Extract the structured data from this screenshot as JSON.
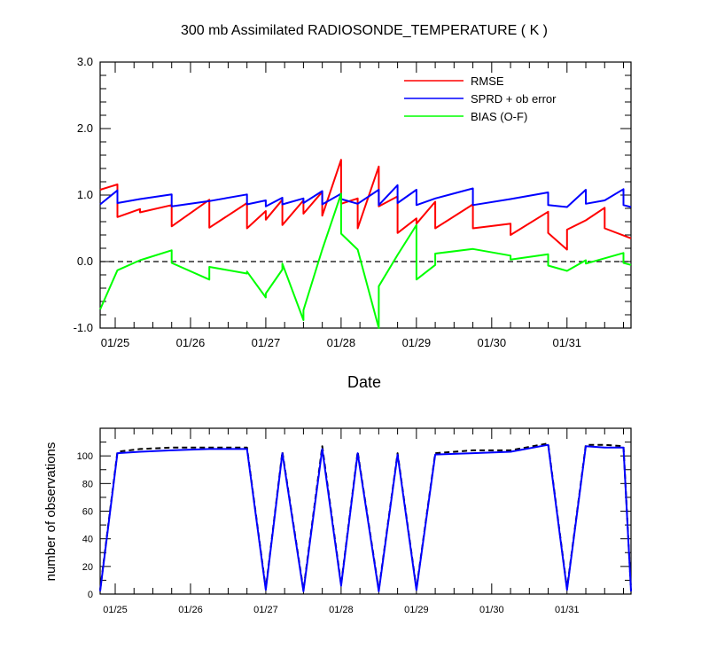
{
  "chart_data": [
    {
      "type": "line",
      "title": "300 mb Assimilated RADIOSONDE_TEMPERATURE ( K )",
      "xlabel": "Date",
      "ylabel": "",
      "xlim": [
        0.8,
        7.85
      ],
      "ylim": [
        -1.0,
        3.0
      ],
      "grid": false,
      "legend_position": "top-right",
      "x_ticks": [
        {
          "x": 1,
          "label": "01/25"
        },
        {
          "x": 2,
          "label": "01/26"
        },
        {
          "x": 3,
          "label": "01/27"
        },
        {
          "x": 4,
          "label": "01/28"
        },
        {
          "x": 5,
          "label": "01/29"
        },
        {
          "x": 6,
          "label": "01/30"
        },
        {
          "x": 7,
          "label": "01/31"
        }
      ],
      "y_ticks": [
        {
          "y": -1.0,
          "label": "-1.0"
        },
        {
          "y": 0.0,
          "label": "0.0"
        },
        {
          "y": 1.0,
          "label": "1.0"
        },
        {
          "y": 2.0,
          "label": "2.0"
        },
        {
          "y": 3.0,
          "label": "3.0"
        }
      ],
      "reference_line": {
        "y": 0.0,
        "style": "dashed"
      },
      "series": [
        {
          "name": "RMSE",
          "color": "#ff0000",
          "points": [
            [
              0.8,
              1.08
            ],
            [
              1.03,
              1.16
            ],
            [
              1.03,
              0.67
            ],
            [
              1.33,
              0.79
            ],
            [
              1.33,
              0.74
            ],
            [
              1.75,
              0.85
            ],
            [
              1.75,
              0.53
            ],
            [
              2.25,
              0.93
            ],
            [
              2.25,
              0.51
            ],
            [
              2.75,
              0.88
            ],
            [
              2.75,
              0.5
            ],
            [
              3.0,
              0.76
            ],
            [
              3.0,
              0.63
            ],
            [
              3.22,
              0.93
            ],
            [
              3.22,
              0.55
            ],
            [
              3.5,
              0.92
            ],
            [
              3.5,
              0.72
            ],
            [
              3.75,
              1.05
            ],
            [
              3.75,
              0.69
            ],
            [
              4.0,
              1.53
            ],
            [
              4.0,
              0.87
            ],
            [
              4.22,
              0.95
            ],
            [
              4.22,
              0.5
            ],
            [
              4.5,
              1.43
            ],
            [
              4.5,
              0.83
            ],
            [
              4.75,
              0.98
            ],
            [
              4.75,
              0.43
            ],
            [
              5.0,
              0.65
            ],
            [
              5.0,
              0.57
            ],
            [
              5.25,
              0.9
            ],
            [
              5.25,
              0.5
            ],
            [
              5.75,
              0.86
            ],
            [
              5.75,
              0.5
            ],
            [
              6.25,
              0.57
            ],
            [
              6.25,
              0.4
            ],
            [
              6.75,
              0.75
            ],
            [
              6.75,
              0.43
            ],
            [
              7.0,
              0.18
            ],
            [
              7.0,
              0.48
            ],
            [
              7.25,
              0.62
            ],
            [
              7.5,
              0.81
            ],
            [
              7.5,
              0.5
            ],
            [
              7.85,
              0.35
            ]
          ]
        },
        {
          "name": "SPRD + ob error",
          "color": "#0000ff",
          "points": [
            [
              0.8,
              0.86
            ],
            [
              1.03,
              1.07
            ],
            [
              1.03,
              0.88
            ],
            [
              1.33,
              0.94
            ],
            [
              1.75,
              1.01
            ],
            [
              1.75,
              0.83
            ],
            [
              2.25,
              0.91
            ],
            [
              2.75,
              1.01
            ],
            [
              2.75,
              0.86
            ],
            [
              3.0,
              0.92
            ],
            [
              3.0,
              0.83
            ],
            [
              3.22,
              0.96
            ],
            [
              3.22,
              0.86
            ],
            [
              3.5,
              0.95
            ],
            [
              3.5,
              0.88
            ],
            [
              3.75,
              1.06
            ],
            [
              3.75,
              0.86
            ],
            [
              4.0,
              1.02
            ],
            [
              4.0,
              0.94
            ],
            [
              4.22,
              0.87
            ],
            [
              4.5,
              1.08
            ],
            [
              4.5,
              0.85
            ],
            [
              4.75,
              1.15
            ],
            [
              4.75,
              0.88
            ],
            [
              5.0,
              1.08
            ],
            [
              5.0,
              0.85
            ],
            [
              5.25,
              0.95
            ],
            [
              5.75,
              1.1
            ],
            [
              5.75,
              0.85
            ],
            [
              6.25,
              0.94
            ],
            [
              6.75,
              1.04
            ],
            [
              6.75,
              0.85
            ],
            [
              7.0,
              0.82
            ],
            [
              7.25,
              1.08
            ],
            [
              7.25,
              0.87
            ],
            [
              7.5,
              0.92
            ],
            [
              7.75,
              1.09
            ],
            [
              7.75,
              0.85
            ],
            [
              7.85,
              0.82
            ]
          ]
        },
        {
          "name": "BIAS (O-F)",
          "color": "#00ff00",
          "points": [
            [
              0.8,
              -0.72
            ],
            [
              1.03,
              -0.13
            ],
            [
              1.33,
              0.02
            ],
            [
              1.75,
              0.17
            ],
            [
              1.75,
              -0.02
            ],
            [
              2.25,
              -0.27
            ],
            [
              2.25,
              -0.08
            ],
            [
              2.75,
              -0.18
            ],
            [
              2.75,
              -0.15
            ],
            [
              3.0,
              -0.54
            ],
            [
              3.0,
              -0.48
            ],
            [
              3.22,
              -0.12
            ],
            [
              3.22,
              -0.03
            ],
            [
              3.5,
              -0.88
            ],
            [
              3.5,
              -0.73
            ],
            [
              3.75,
              0.18
            ],
            [
              4.0,
              1.02
            ],
            [
              4.0,
              0.42
            ],
            [
              4.22,
              0.18
            ],
            [
              4.5,
              -1.0
            ],
            [
              4.5,
              -0.37
            ],
            [
              4.75,
              0.1
            ],
            [
              5.0,
              0.55
            ],
            [
              5.0,
              -0.27
            ],
            [
              5.25,
              -0.05
            ],
            [
              5.25,
              0.12
            ],
            [
              5.75,
              0.19
            ],
            [
              6.25,
              0.09
            ],
            [
              6.25,
              0.03
            ],
            [
              6.75,
              0.11
            ],
            [
              6.75,
              -0.06
            ],
            [
              7.0,
              -0.14
            ],
            [
              7.25,
              0.02
            ],
            [
              7.25,
              -0.03
            ],
            [
              7.75,
              0.13
            ],
            [
              7.75,
              -0.02
            ],
            [
              7.85,
              -0.05
            ]
          ]
        }
      ]
    },
    {
      "type": "line",
      "title": "",
      "xlabel": "",
      "ylabel": "number of observations",
      "xlim": [
        0.8,
        7.85
      ],
      "ylim": [
        0,
        120
      ],
      "grid": false,
      "x_ticks": [
        {
          "x": 1,
          "label": "01/25"
        },
        {
          "x": 2,
          "label": "01/26"
        },
        {
          "x": 3,
          "label": "01/27"
        },
        {
          "x": 4,
          "label": "01/28"
        },
        {
          "x": 5,
          "label": "01/29"
        },
        {
          "x": 6,
          "label": "01/30"
        },
        {
          "x": 7,
          "label": "01/31"
        }
      ],
      "y_ticks": [
        {
          "y": 0,
          "label": "0"
        },
        {
          "y": 20,
          "label": "20"
        },
        {
          "y": 40,
          "label": "40"
        },
        {
          "y": 60,
          "label": "60"
        },
        {
          "y": 80,
          "label": "80"
        },
        {
          "y": 100,
          "label": "100"
        }
      ],
      "series": [
        {
          "color": "#000000",
          "style": "dashed",
          "points": [
            [
              0.8,
              3
            ],
            [
              1.03,
              103
            ],
            [
              1.33,
              105
            ],
            [
              1.75,
              106
            ],
            [
              2.25,
              106
            ],
            [
              2.75,
              106
            ],
            [
              3.0,
              4
            ],
            [
              3.22,
              103
            ],
            [
              3.5,
              3
            ],
            [
              3.75,
              107
            ],
            [
              4.0,
              7
            ],
            [
              4.22,
              103
            ],
            [
              4.5,
              3
            ],
            [
              4.75,
              102
            ],
            [
              5.0,
              4
            ],
            [
              5.25,
              102
            ],
            [
              5.75,
              104
            ],
            [
              6.25,
              104
            ],
            [
              6.75,
              109
            ],
            [
              7.0,
              4
            ],
            [
              7.25,
              108
            ],
            [
              7.5,
              108
            ],
            [
              7.75,
              107
            ],
            [
              7.85,
              3
            ]
          ]
        },
        {
          "color": "#0000ff",
          "points": [
            [
              0.8,
              2
            ],
            [
              1.03,
              102
            ],
            [
              1.33,
              103
            ],
            [
              1.75,
              104
            ],
            [
              2.25,
              105
            ],
            [
              2.75,
              105
            ],
            [
              3.0,
              3
            ],
            [
              3.22,
              102
            ],
            [
              3.5,
              2
            ],
            [
              3.75,
              105
            ],
            [
              4.0,
              6
            ],
            [
              4.22,
              102
            ],
            [
              4.5,
              2
            ],
            [
              4.75,
              101
            ],
            [
              5.0,
              3
            ],
            [
              5.25,
              101
            ],
            [
              5.75,
              102
            ],
            [
              6.25,
              103
            ],
            [
              6.75,
              108
            ],
            [
              7.0,
              3
            ],
            [
              7.25,
              107
            ],
            [
              7.5,
              106
            ],
            [
              7.75,
              106
            ],
            [
              7.85,
              2
            ]
          ]
        }
      ]
    }
  ]
}
